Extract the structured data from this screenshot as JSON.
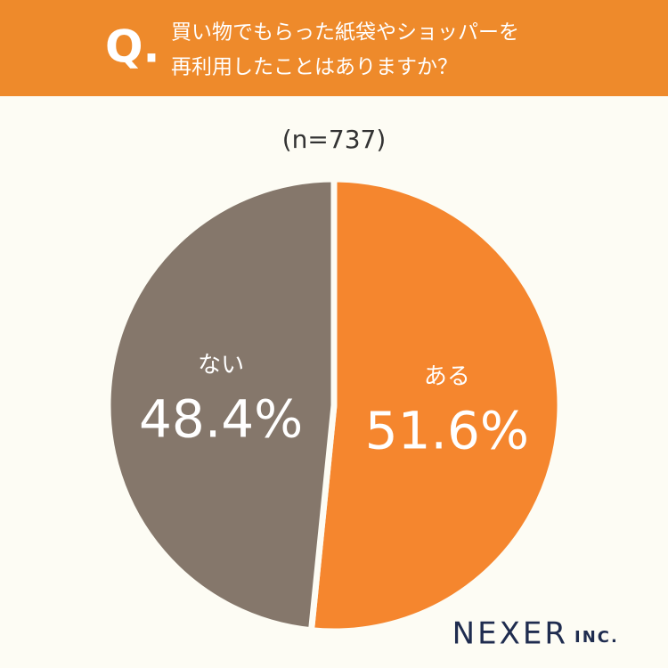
{
  "chart_data": {
    "type": "pie",
    "title_prefix": "Q.",
    "title": [
      "買い物でもらった紙袋やショッパーを",
      "再利用したことはありますか？"
    ],
    "subtitle": "(n=737)",
    "categories": [
      "ある",
      "ない"
    ],
    "values": [
      51.6,
      48.4
    ],
    "value_labels": [
      "51.6%",
      "48.4%"
    ],
    "colors": [
      "#f5862e",
      "#85776b"
    ],
    "logo": "NEXER",
    "logo_suffix": "INC."
  }
}
